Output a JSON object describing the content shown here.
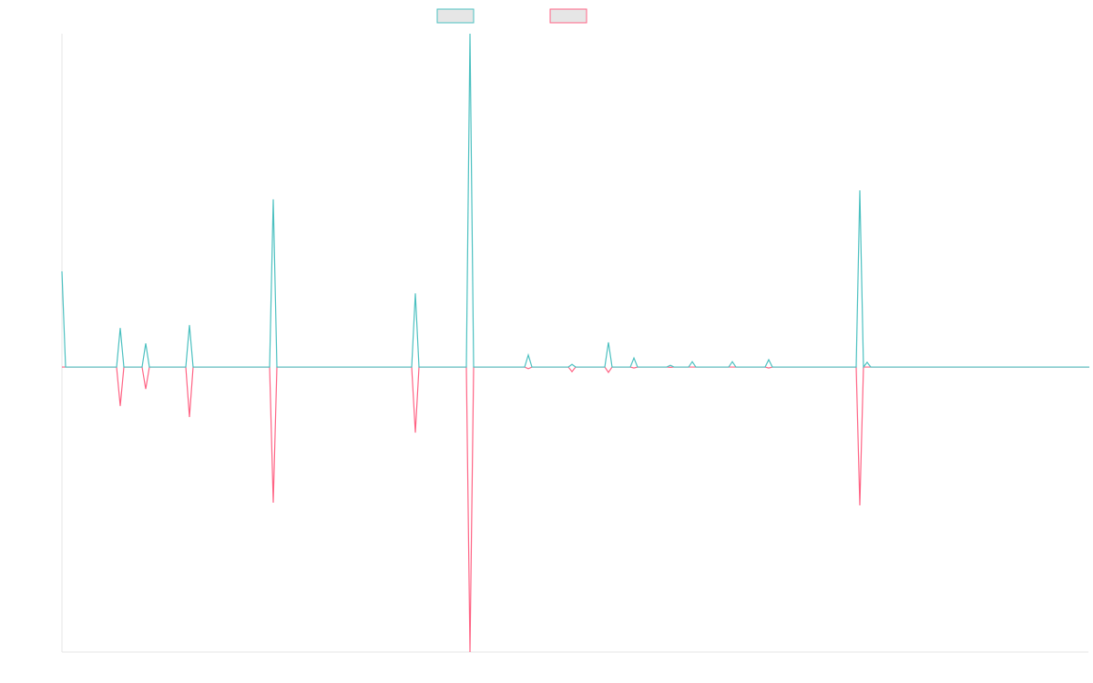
{
  "chart_data": {
    "type": "line",
    "x": [
      0,
      1,
      15,
      16,
      17,
      22,
      23,
      24,
      34,
      35,
      36,
      57,
      58,
      59,
      96,
      97,
      98,
      111,
      112,
      113,
      127,
      128,
      129,
      139,
      140,
      141,
      149,
      150,
      151,
      156,
      157,
      158,
      166,
      167,
      168,
      172,
      173,
      174,
      183,
      184,
      185,
      193,
      194,
      195,
      218,
      219,
      220,
      221,
      222,
      282
    ],
    "xlim": [
      0,
      282
    ],
    "ylim": [
      -85.5,
      100
    ],
    "series": [
      {
        "color": "#ff6384",
        "values": [
          0,
          0,
          0,
          -11.7,
          0,
          0,
          -6.6,
          0,
          0,
          -15,
          0,
          0,
          -40.7,
          0,
          0,
          -19.7,
          0,
          0,
          -85.5,
          0,
          0,
          -0.5,
          0,
          0,
          -1.4,
          0,
          0,
          -1.6,
          0,
          0,
          -0.3,
          0,
          0,
          -0.1,
          0,
          0,
          0,
          0,
          0,
          0,
          0,
          0,
          -0.3,
          0,
          0,
          -41.5,
          0,
          0,
          0,
          0
        ]
      },
      {
        "color": "#4bc0c0",
        "values": [
          28.7,
          0,
          0,
          11.7,
          0,
          0,
          7.1,
          0,
          0,
          12.6,
          0,
          0,
          50.3,
          0,
          0,
          22.1,
          0,
          0,
          100,
          0,
          0,
          3.6,
          0,
          0,
          0.8,
          0,
          0,
          7.4,
          0,
          0,
          2.7,
          0,
          0,
          0.5,
          0,
          0,
          1.6,
          0,
          0,
          1.6,
          0,
          0,
          2.2,
          0,
          0,
          53,
          0,
          1.4,
          0,
          0
        ]
      }
    ]
  }
}
